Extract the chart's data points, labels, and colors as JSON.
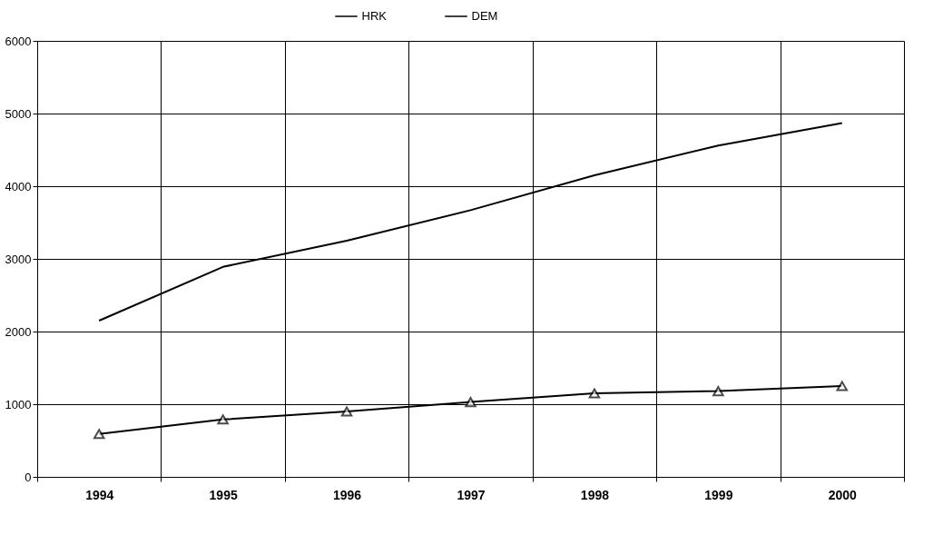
{
  "chart_data": {
    "type": "line",
    "categories": [
      "1994",
      "1995",
      "1996",
      "1997",
      "1998",
      "1999",
      "2000"
    ],
    "series": [
      {
        "name": "HRK",
        "color": "#000000",
        "marker": "none",
        "values": [
          2150,
          2890,
          3250,
          3670,
          4150,
          4560,
          4870
        ]
      },
      {
        "name": "DEM",
        "color": "#000000",
        "marker": "triangle",
        "values": [
          590,
          790,
          900,
          1030,
          1150,
          1180,
          1250
        ]
      }
    ],
    "ylim": [
      0,
      6000
    ],
    "yticks": [
      0,
      1000,
      2000,
      3000,
      4000,
      5000,
      6000
    ],
    "grid": true,
    "legend": "top",
    "line_style": "solid"
  }
}
